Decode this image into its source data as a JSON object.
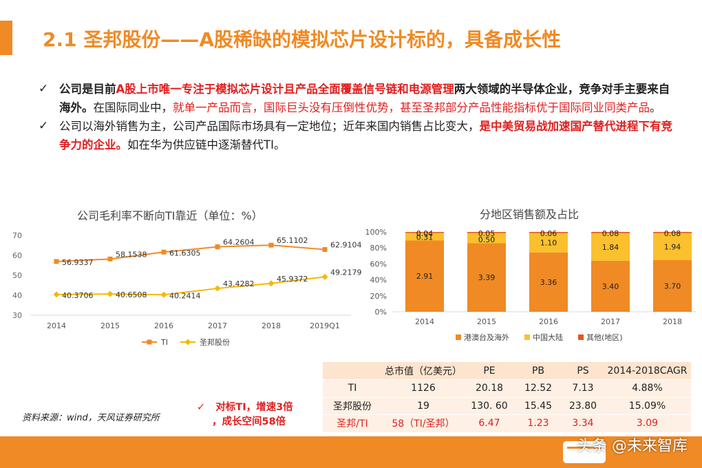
{
  "header": {
    "title": "2.1 圣邦股份——A股稀缺的模拟芯片设计标的，具备成长性"
  },
  "bullets": {
    "check": "✓",
    "b1_a": "公司是目前",
    "b1_b": "A股上市唯一专注于模拟芯片设计且产品全面覆盖信号链和电源管理",
    "b1_c": "两大领域的半导体企业，竞争对手主要来自海外。",
    "b1_d": "在国际同业中，",
    "b1_e": "就单一产品而言，国际巨头没有压倒性优势，甚至圣邦部分产品性能指标优于国际同业同类产品",
    "b1_f": "。",
    "b2_a": "公司以海外销售为主，公司产品国际市场具有一定地位；近年来国内销售占比变大，",
    "b2_b": "是中美贸易战加速国产替代进程下有竞争力的企业。",
    "b2_c": "如在华为供应链中逐渐替代TI。"
  },
  "chart_data": [
    {
      "type": "line",
      "title": "公司毛利率不断向TI靠近（单位：%）",
      "categories": [
        "2014",
        "2015",
        "2016",
        "2017",
        "2018",
        "2019Q1"
      ],
      "ylim": [
        30,
        70
      ],
      "yticks": [
        "30",
        "40",
        "50",
        "60",
        "70"
      ],
      "legend_position": "bottom",
      "series": [
        {
          "name": "TI",
          "color": "#f08a24",
          "marker": "square",
          "values": [
            56.9337,
            58.1538,
            61.6305,
            64.2604,
            65.1102,
            62.9104
          ],
          "labels": [
            "56.9337",
            "58.1538",
            "61.6305",
            "64.2604",
            "65.1102",
            "62.9104"
          ]
        },
        {
          "name": "圣邦股份",
          "color": "#f5b800",
          "marker": "diamond",
          "values": [
            40.3706,
            40.6508,
            40.2414,
            43.4282,
            45.9372,
            49.2179
          ],
          "labels": [
            "40.3706",
            "40.6508",
            "40.2414",
            "43.4282",
            "45.9372",
            "49.2179"
          ]
        }
      ]
    },
    {
      "type": "bar",
      "stacked": "percent",
      "title": "分地区销售额及占比",
      "categories": [
        "2014",
        "2015",
        "2016",
        "2017",
        "2018"
      ],
      "yticks": [
        "0%",
        "20%",
        "40%",
        "60%",
        "80%",
        "100%"
      ],
      "legend_position": "bottom",
      "series": [
        {
          "name": "港澳台及海外",
          "color": "#f08a24",
          "values": [
            2.91,
            3.39,
            3.36,
            3.4,
            3.7
          ],
          "labels": [
            "2.91",
            "3.39",
            "3.36",
            "3.40",
            "3.70"
          ]
        },
        {
          "name": "中国大陆",
          "color": "#fbc02d",
          "values": [
            0.31,
            0.5,
            1.1,
            1.84,
            1.94
          ],
          "labels": [
            "0.31",
            "0.50",
            "1.10",
            "1.84",
            "1.94"
          ]
        },
        {
          "name": "其他(地区)",
          "color": "#e8541e",
          "values": [
            0.04,
            0.05,
            0.06,
            0.08,
            0.08
          ],
          "labels": [
            "0.04",
            "0.05",
            "0.06",
            "0.08",
            "0.08"
          ]
        }
      ]
    },
    {
      "type": "table",
      "header": [
        "",
        "总市值（亿美元）",
        "PE",
        "PB",
        "PS",
        "2014-2018CAGR"
      ],
      "rows": [
        [
          "TI",
          "1126",
          "20.18",
          "12.52",
          "7.13",
          "4.88%"
        ],
        [
          "圣邦股份",
          "19",
          "130. 60",
          "15.45",
          "23.80",
          "15.09%"
        ],
        [
          "圣邦/TI",
          "58（TI/圣邦）",
          "6.47",
          "1.23",
          "3.34",
          "3.09"
        ]
      ]
    }
  ],
  "source": "资料来源：wind，天风证券研究所",
  "callout": {
    "check": "✓",
    "line1": "对标TI，增速3倍",
    "line2": "，成长空间58倍"
  },
  "watermark": "头条 @未来智库",
  "colors": {
    "accent": "#f08a24",
    "red": "#e02020"
  }
}
